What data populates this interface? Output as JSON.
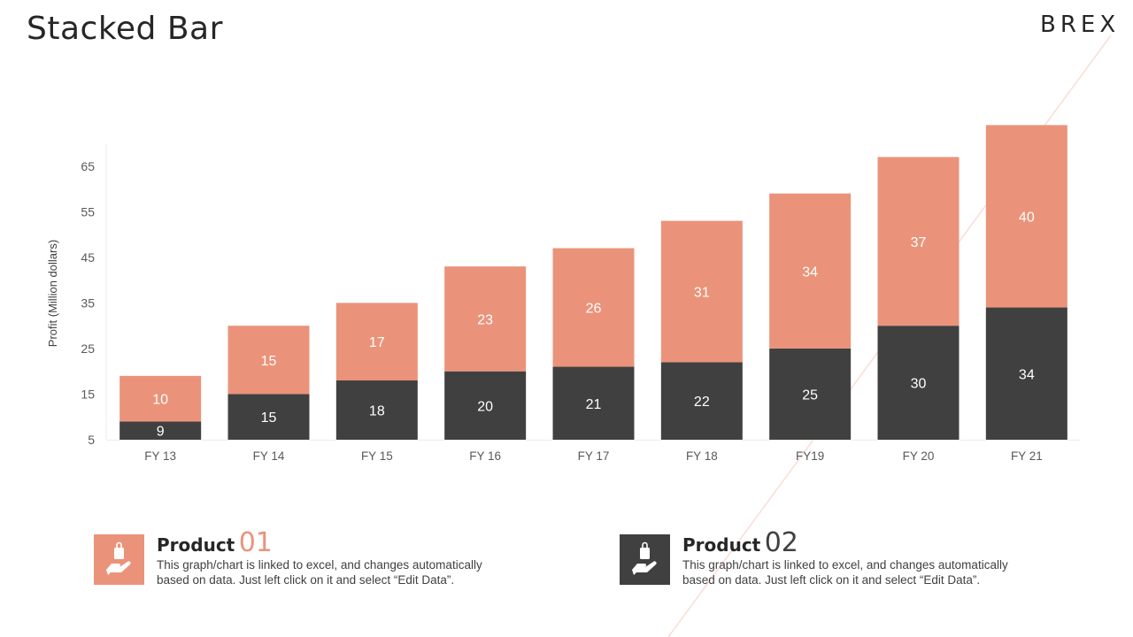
{
  "title": "Stacked Bar",
  "brand": "BREX",
  "colors": {
    "accent": "#EA937A",
    "dark": "#404040",
    "label_light": "#FFFFFF",
    "background": "#FFFFFF"
  },
  "chart_data": {
    "type": "bar",
    "stacked": true,
    "categories": [
      "FY 13",
      "FY 14",
      "FY 15",
      "FY 16",
      "FY 17",
      "FY 18",
      "FY19",
      "FY 20",
      "FY 21"
    ],
    "series": [
      {
        "values": [
          9,
          15,
          18,
          20,
          21,
          22,
          25,
          30,
          34
        ],
        "color": "#404040"
      },
      {
        "values": [
          10,
          15,
          17,
          23,
          26,
          31,
          34,
          37,
          40
        ],
        "color": "#EA937A"
      }
    ],
    "ylabel": "Profit  (Million dollars)",
    "xlabel": "",
    "yticks": [
      5,
      15,
      25,
      35,
      45,
      55,
      65
    ],
    "ylim": [
      5,
      70
    ],
    "grid": false,
    "legend": "none",
    "data_labels": true
  },
  "products": [
    {
      "word": "Product",
      "number": "01",
      "number_color": "#EA937A",
      "tile_color": "#EA937A",
      "icon": "hand-holding-bag-icon",
      "desc_line1": "This graph/chart is linked to excel,  and changes automatically",
      "desc_line2": "based on data. Just left click on it and select “Edit Data”."
    },
    {
      "word": "Product",
      "number": "02",
      "number_color": "#404040",
      "tile_color": "#404040",
      "icon": "hand-holding-bag-icon",
      "desc_line1": "This graph/chart is linked to excel,  and changes automatically",
      "desc_line2": "based on data. Just left click on it and select “Edit Data”."
    }
  ]
}
